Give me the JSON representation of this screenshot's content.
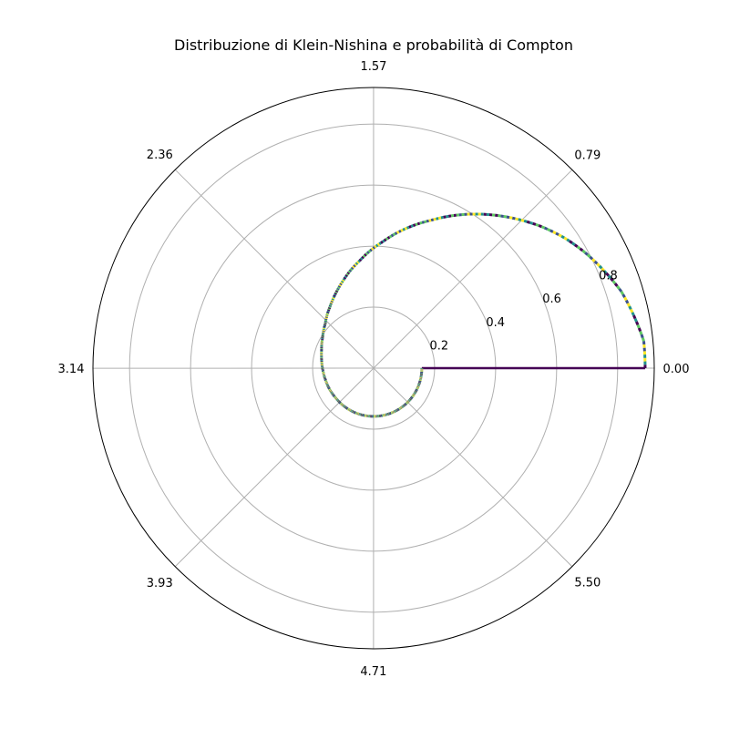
{
  "chart_data": {
    "type": "line",
    "projection": "polar",
    "title": "Distribuzione di Klein-Nishina e probabilità di Compton",
    "theta_ticks": [
      "0.00",
      "0.79",
      "1.57",
      "2.36",
      "3.14",
      "3.93",
      "4.71",
      "5.50"
    ],
    "theta_tick_values": [
      0,
      0.785,
      1.571,
      2.356,
      3.142,
      3.927,
      4.712,
      5.498
    ],
    "r_ticks": [
      "0.2",
      "0.4",
      "0.6",
      "0.8"
    ],
    "r_tick_values": [
      0.2,
      0.4,
      0.6,
      0.8
    ],
    "rlim": [
      0,
      0.92
    ],
    "grid": true,
    "colormap": [
      "#440154",
      "#3b528b",
      "#21918c",
      "#5ec962",
      "#fde725"
    ],
    "series": [
      {
        "theta": [
          0,
          0.1,
          0.2,
          0.3,
          0.4,
          0.5,
          0.6,
          0.7,
          0.8,
          0.9,
          1.0,
          1.1,
          1.2,
          1.3,
          1.4,
          1.5,
          1.6,
          1.7,
          1.8,
          1.9,
          2.0,
          2.1,
          2.2,
          2.3,
          2.4,
          2.5,
          2.6,
          2.7,
          2.8,
          2.9,
          3.0,
          3.1,
          3.2,
          3.3,
          3.4,
          3.5,
          3.6,
          3.7,
          3.8,
          3.9,
          4.0,
          4.1,
          4.2,
          4.3,
          4.4,
          4.5,
          4.6,
          4.7,
          4.8,
          4.9,
          5.0,
          5.1,
          5.2,
          5.3,
          5.4,
          5.5,
          5.6,
          5.7,
          5.8,
          5.9,
          6.0,
          6.1,
          6.2,
          6.283
        ],
        "r": [
          0.89,
          0.89,
          0.87,
          0.85,
          0.82,
          0.79,
          0.757,
          0.72,
          0.68,
          0.64,
          0.6,
          0.56,
          0.52,
          0.485,
          0.45,
          0.415,
          0.385,
          0.355,
          0.33,
          0.305,
          0.283,
          0.263,
          0.245,
          0.23,
          0.215,
          0.205,
          0.195,
          0.188,
          0.181,
          0.176,
          0.172,
          0.169,
          0.166,
          0.164,
          0.162,
          0.161,
          0.16,
          0.159,
          0.158,
          0.158,
          0.158,
          0.158,
          0.158,
          0.158,
          0.158,
          0.158,
          0.158,
          0.158,
          0.158,
          0.158,
          0.158,
          0.158,
          0.158,
          0.158,
          0.158,
          0.158,
          0.158,
          0.158,
          0.158,
          0.158,
          0.158,
          0.158,
          0.158,
          0.158
        ]
      }
    ]
  }
}
